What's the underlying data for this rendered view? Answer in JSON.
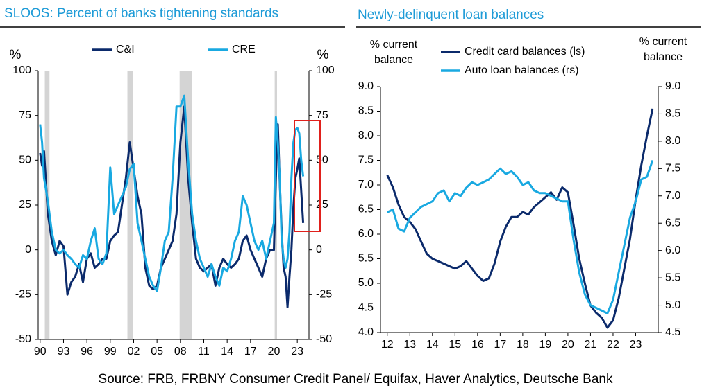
{
  "chart_data": [
    {
      "type": "line",
      "title": "SLOOS: Percent of banks tightening standards",
      "ylabel": "%",
      "y2label": "%",
      "x": [
        1990.0,
        1990.25,
        1990.5,
        1991,
        1991.5,
        1992,
        1992.5,
        1993,
        1993.5,
        1994,
        1994.5,
        1995,
        1995.5,
        1996,
        1996.5,
        1997,
        1997.5,
        1998,
        1998.5,
        1999,
        1999.5,
        2000,
        2000.5,
        2001,
        2001.5,
        2002,
        2002.5,
        2003,
        2003.5,
        2004,
        2004.5,
        2005,
        2005.5,
        2006,
        2006.5,
        2007,
        2007.5,
        2008,
        2008.5,
        2009,
        2009.5,
        2010,
        2010.5,
        2011,
        2011.5,
        2012,
        2012.5,
        2013,
        2013.5,
        2014,
        2014.5,
        2015,
        2015.5,
        2016,
        2016.5,
        2017,
        2017.5,
        2018,
        2018.5,
        2019,
        2019.5,
        2020,
        2020.25,
        2020.5,
        2020.75,
        2021,
        2021.25,
        2021.5,
        2021.75,
        2022,
        2022.25,
        2022.5,
        2022.75,
        2023,
        2023.25,
        2023.5,
        2023.75
      ],
      "series": [
        {
          "name": "C&I",
          "color": "#0b2a6b",
          "values": [
            54,
            47,
            55,
            20,
            5,
            -3,
            5,
            2,
            -25,
            -18,
            -15,
            -8,
            -18,
            -5,
            -2,
            -10,
            -8,
            -5,
            -5,
            5,
            8,
            10,
            25,
            40,
            60,
            45,
            30,
            20,
            -10,
            -20,
            -22,
            -20,
            -10,
            -5,
            0,
            5,
            20,
            60,
            80,
            40,
            15,
            -5,
            -10,
            -12,
            -10,
            -8,
            -20,
            -10,
            -5,
            -8,
            -10,
            -8,
            -5,
            5,
            8,
            0,
            -5,
            -10,
            -15,
            -5,
            0,
            0,
            40,
            70,
            38,
            10,
            -10,
            -15,
            -32,
            -15,
            0,
            24,
            40,
            45,
            51,
            33,
            15
          ]
        },
        {
          "name": "CRE",
          "color": "#19a9e1",
          "axis": "y2",
          "values": [
            70,
            60,
            40,
            27,
            10,
            0,
            -2,
            0,
            -3,
            -5,
            -8,
            -10,
            -3,
            -5,
            5,
            12,
            -5,
            -8,
            -2,
            46,
            20,
            25,
            30,
            35,
            45,
            48,
            15,
            5,
            -5,
            -15,
            -20,
            -23,
            -10,
            5,
            10,
            40,
            80,
            80,
            86,
            50,
            20,
            5,
            -5,
            -10,
            -15,
            -8,
            -15,
            -20,
            -10,
            -12,
            -5,
            5,
            10,
            30,
            25,
            15,
            5,
            0,
            5,
            -5,
            5,
            15,
            74,
            60,
            40,
            5,
            -5,
            -10,
            -5,
            10,
            40,
            60,
            67,
            68,
            65,
            50,
            41
          ]
        }
      ],
      "shading": [
        [
          1990.6,
          1991.2
        ],
        [
          2001.2,
          2001.9
        ],
        [
          2007.9,
          2009.5
        ],
        [
          2020.1,
          2020.4
        ]
      ],
      "xlim": [
        1989.75,
        2024.5
      ],
      "xticks": [
        {
          "value": 1990,
          "label": "90"
        },
        {
          "value": 1993,
          "label": "93"
        },
        {
          "value": 1996,
          "label": "96"
        },
        {
          "value": 1999,
          "label": "99"
        },
        {
          "value": 2002,
          "label": "02"
        },
        {
          "value": 2005,
          "label": "05"
        },
        {
          "value": 2008,
          "label": "08"
        },
        {
          "value": 2011,
          "label": "11"
        },
        {
          "value": 2014,
          "label": "14"
        },
        {
          "value": 2017,
          "label": "17"
        },
        {
          "value": 2020,
          "label": "20"
        },
        {
          "value": 2023,
          "label": "23"
        }
      ],
      "ylim": [
        -50,
        100
      ],
      "yticks": [
        -50,
        -25,
        0,
        25,
        50,
        75,
        100
      ],
      "y2lim": [
        -50,
        100
      ],
      "y2ticks": [
        -50,
        -25,
        0,
        25,
        50,
        75,
        100
      ]
    },
    {
      "type": "line",
      "title": "Newly-delinquent loan balances",
      "ylabel": [
        "% current",
        "balance"
      ],
      "y2label": [
        "% current",
        "balance"
      ],
      "x": [
        2012,
        2012.25,
        2012.5,
        2012.75,
        2013,
        2013.25,
        2013.5,
        2013.75,
        2014,
        2014.25,
        2014.5,
        2014.75,
        2015,
        2015.25,
        2015.5,
        2015.75,
        2016,
        2016.25,
        2016.5,
        2016.75,
        2017,
        2017.25,
        2017.5,
        2017.75,
        2018,
        2018.25,
        2018.5,
        2018.75,
        2019,
        2019.25,
        2019.5,
        2019.75,
        2020,
        2020.25,
        2020.5,
        2020.75,
        2021,
        2021.25,
        2021.5,
        2021.75,
        2022,
        2022.25,
        2022.5,
        2022.75,
        2023,
        2023.25,
        2023.5,
        2023.75
      ],
      "series": [
        {
          "name": "Credit card balances (ls)",
          "color": "#0b2a6b",
          "values": [
            7.2,
            6.95,
            6.6,
            6.35,
            6.25,
            6.1,
            5.85,
            5.6,
            5.5,
            5.45,
            5.4,
            5.35,
            5.3,
            5.35,
            5.45,
            5.3,
            5.15,
            5.05,
            5.1,
            5.4,
            5.85,
            6.15,
            6.35,
            6.35,
            6.45,
            6.4,
            6.55,
            6.65,
            6.75,
            6.85,
            6.7,
            6.95,
            6.85,
            6.2,
            5.5,
            5.0,
            4.55,
            4.4,
            4.3,
            4.1,
            4.25,
            4.7,
            5.3,
            5.9,
            6.7,
            7.4,
            8.0,
            8.55
          ]
        },
        {
          "name": "Auto loan balances (rs)",
          "color": "#19a9e1",
          "axis": "y2",
          "values": [
            6.7,
            6.75,
            6.4,
            6.35,
            6.6,
            6.7,
            6.8,
            6.85,
            6.9,
            7.05,
            7.1,
            6.9,
            7.05,
            7.0,
            7.15,
            7.25,
            7.2,
            7.25,
            7.3,
            7.4,
            7.5,
            7.4,
            7.45,
            7.35,
            7.2,
            7.25,
            7.1,
            7.05,
            7.05,
            7.0,
            6.95,
            6.9,
            6.9,
            6.2,
            5.6,
            5.2,
            5.0,
            4.95,
            4.9,
            4.85,
            5.1,
            5.6,
            6.1,
            6.6,
            6.9,
            7.3,
            7.35,
            7.65
          ]
        }
      ],
      "xlim": [
        2011.7,
        2024
      ],
      "xticks": [
        {
          "value": 2012,
          "label": "12"
        },
        {
          "value": 2013,
          "label": "13"
        },
        {
          "value": 2014,
          "label": "14"
        },
        {
          "value": 2015,
          "label": "15"
        },
        {
          "value": 2016,
          "label": "16"
        },
        {
          "value": 2017,
          "label": "17"
        },
        {
          "value": 2018,
          "label": "18"
        },
        {
          "value": 2019,
          "label": "19"
        },
        {
          "value": 2020,
          "label": "20"
        },
        {
          "value": 2021,
          "label": "21"
        },
        {
          "value": 2022,
          "label": "22"
        },
        {
          "value": 2023,
          "label": "23"
        }
      ],
      "ylim": [
        4,
        9
      ],
      "yticks": [
        {
          "value": 4,
          "label": "4.0"
        },
        4.5,
        {
          "value": 5,
          "label": "5.0"
        },
        5.5,
        {
          "value": 6,
          "label": "6.0"
        },
        6.5,
        {
          "value": 7,
          "label": "7.0"
        },
        7.5,
        {
          "value": 8,
          "label": "8.0"
        },
        8.5,
        {
          "value": 9,
          "label": "9.0"
        }
      ],
      "y2lim": [
        4.5,
        9
      ],
      "y2ticks": [
        4.5,
        {
          "value": 5,
          "label": "5.0"
        },
        5.5,
        {
          "value": 6,
          "label": "6.0"
        },
        6.5,
        {
          "value": 7,
          "label": "7.0"
        },
        7.5,
        {
          "value": 8,
          "label": "8.0"
        },
        8.5,
        {
          "value": 9,
          "label": "9.0"
        }
      ]
    }
  ],
  "source": "Source: FRB, FRBNY Consumer Credit Panel/ Equifax, Haver Analytics, Deutsche Bank"
}
